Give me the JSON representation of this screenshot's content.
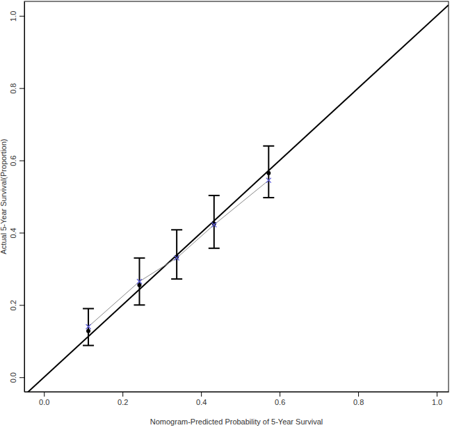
{
  "chart_data": {
    "type": "scatter",
    "xlabel": "Nomogram-Predicted Probability of 5-Year Survival",
    "ylabel": "Actual 5-Year Survival(Proportion)",
    "x": [
      0.113,
      0.243,
      0.338,
      0.433,
      0.572
    ],
    "series": [
      {
        "color": "#000000",
        "marker": "circle",
        "values": [
          0.128,
          0.255,
          0.333,
          0.425,
          0.565
        ],
        "lower": [
          0.088,
          0.2,
          0.272,
          0.357,
          0.497
        ],
        "upper": [
          0.19,
          0.33,
          0.408,
          0.503,
          0.64
        ]
      },
      {
        "color": "#5b5bd6",
        "marker": "x",
        "line_style": "solid",
        "values": [
          0.14,
          0.265,
          0.33,
          0.422,
          0.545
        ]
      }
    ],
    "xlim": [
      -0.05,
      1.03
    ],
    "ylim": [
      -0.04,
      1.04
    ],
    "xticks": [
      {
        "value": 0,
        "label": "0.0"
      },
      {
        "value": 0.2,
        "label": "0.2"
      },
      {
        "value": 0.4,
        "label": "0.4"
      },
      {
        "value": 0.6,
        "label": "0.6"
      },
      {
        "value": 0.8,
        "label": "0.8"
      },
      {
        "value": 1,
        "label": "1.0"
      }
    ],
    "yticks": [
      {
        "value": 0,
        "label": "0.0"
      },
      {
        "value": 0.2,
        "label": "0.2"
      },
      {
        "value": 0.4,
        "label": "0.4"
      },
      {
        "value": 0.6,
        "label": "0.6"
      },
      {
        "value": 0.8,
        "label": "0.8"
      },
      {
        "value": 1,
        "label": "1.0"
      }
    ]
  }
}
